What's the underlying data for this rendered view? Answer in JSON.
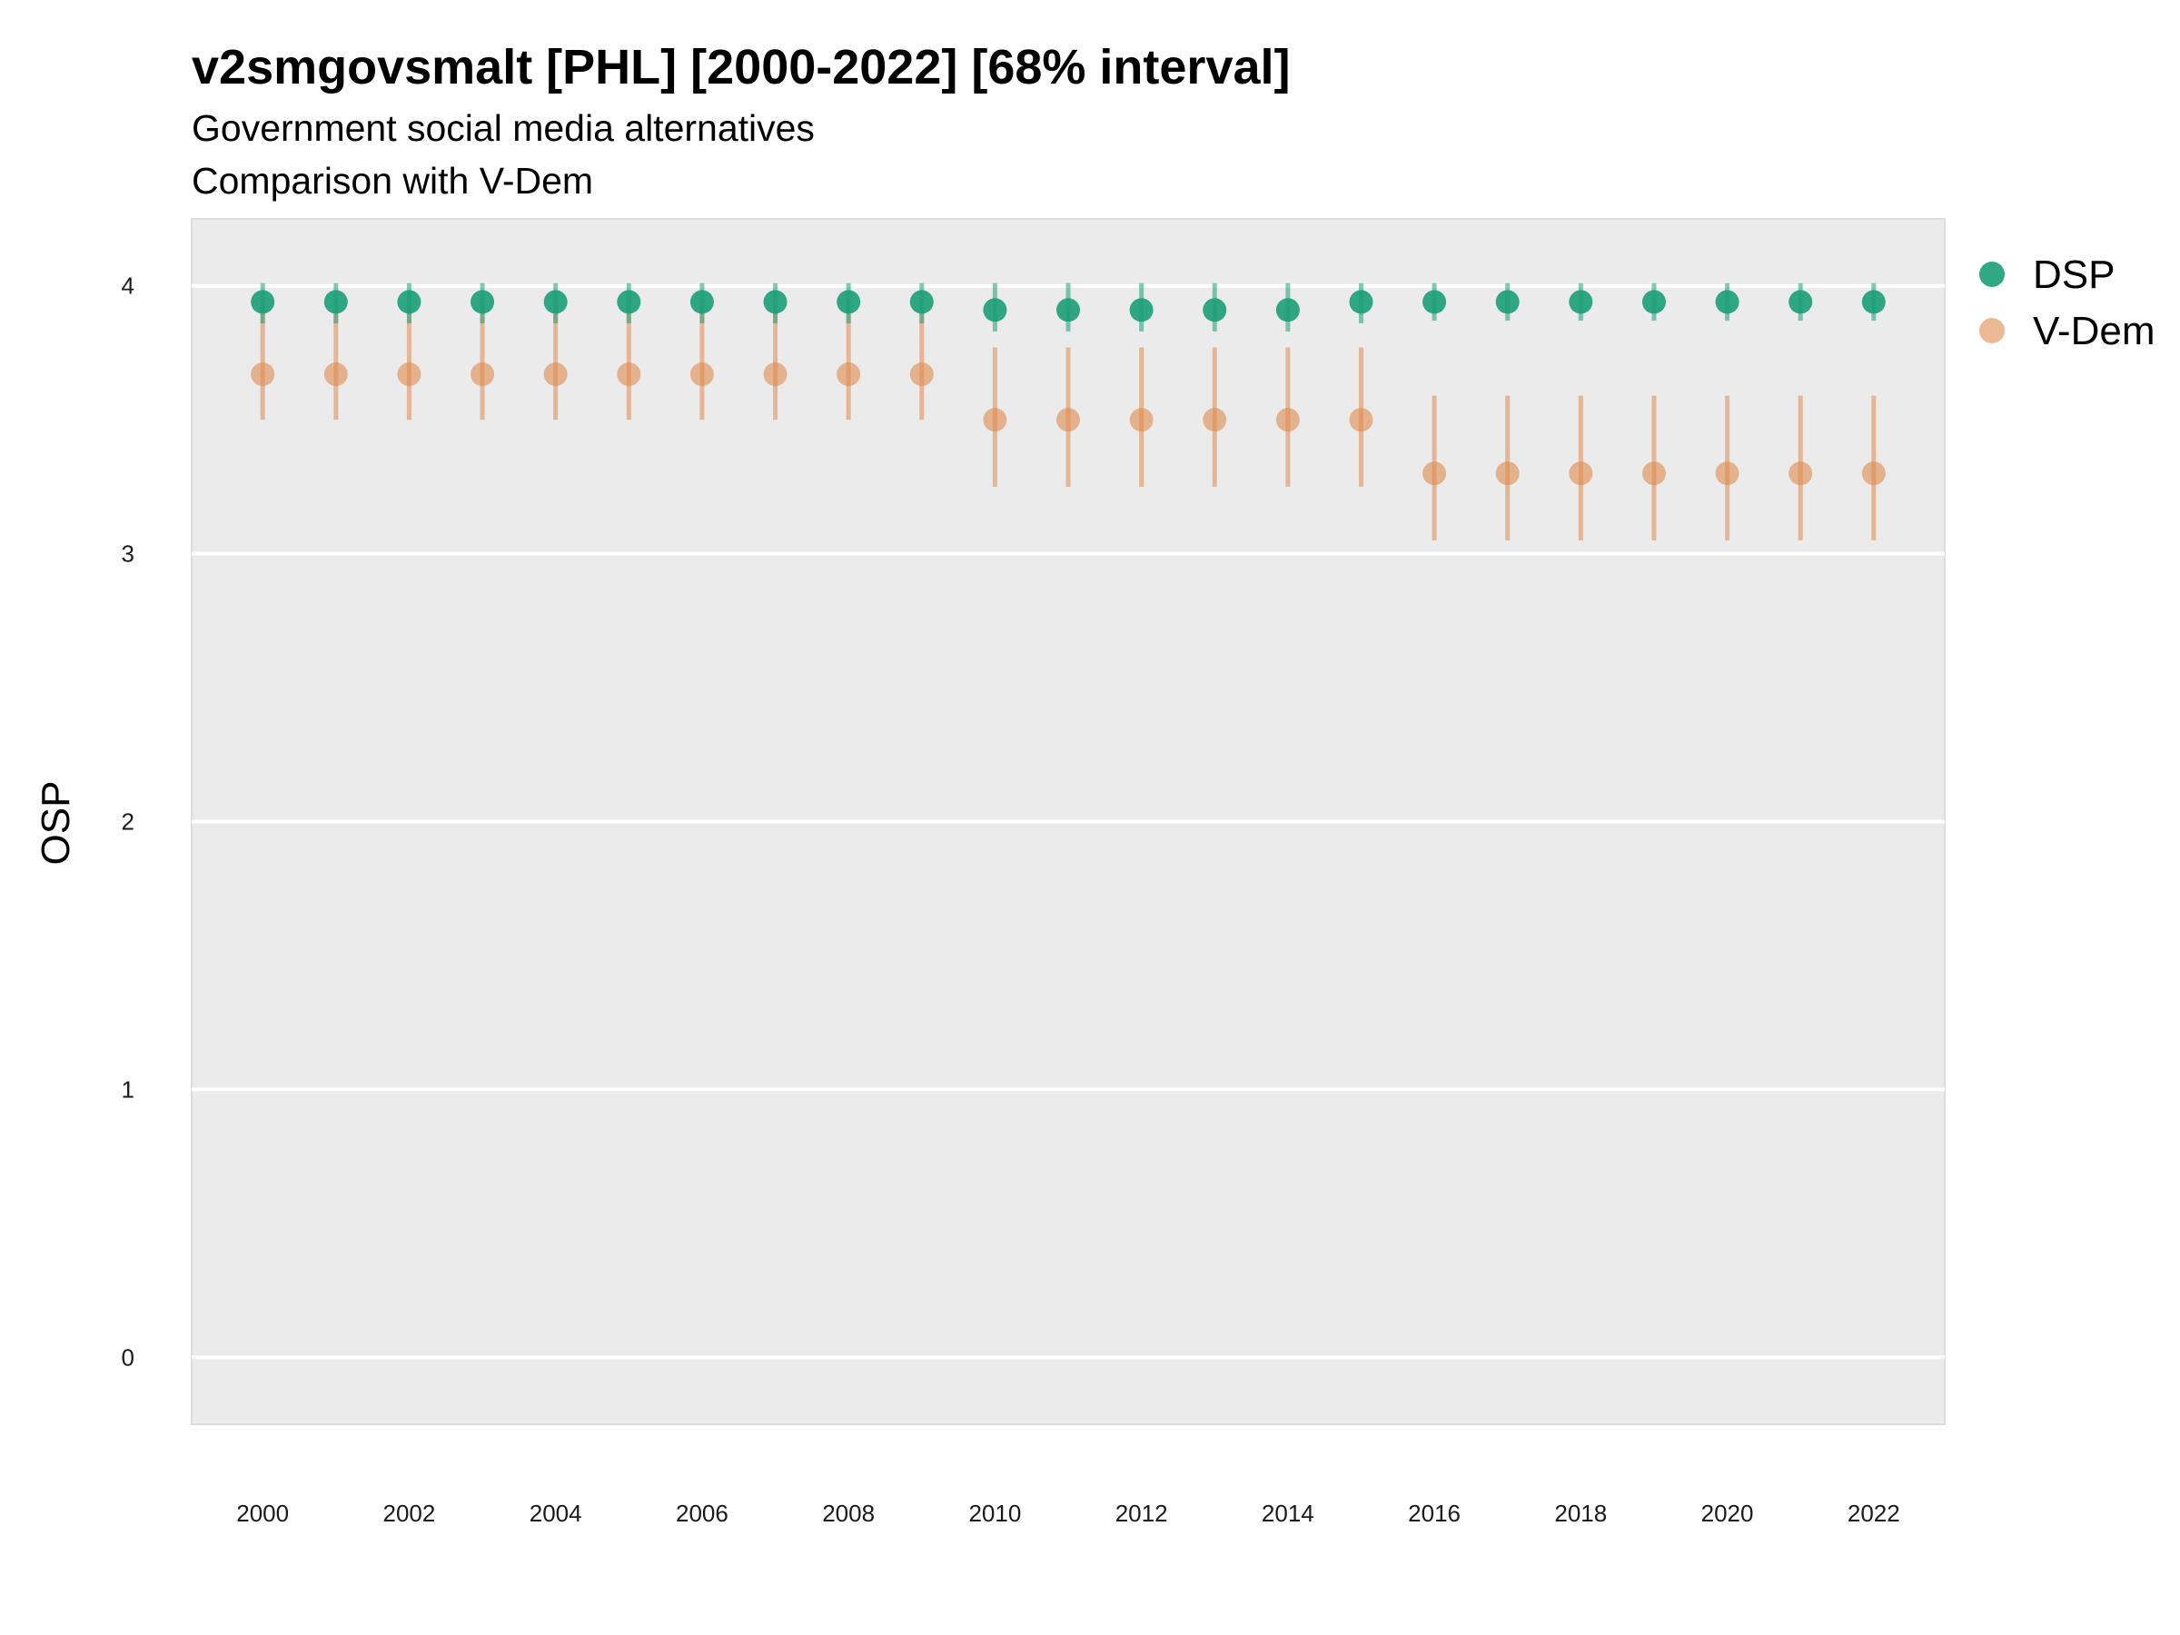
{
  "chart_data": {
    "type": "scatter",
    "title": "v2smgovsmalt [PHL] [2000-2022] [68% interval]",
    "subtitle": "Government social media alternatives",
    "caption": "Comparison with V-Dem",
    "xlabel": "",
    "ylabel": "OSP",
    "ylim": [
      -0.25,
      4.25
    ],
    "y_ticks": [
      0,
      1,
      2,
      3,
      4
    ],
    "x_ticks": [
      2000,
      2002,
      2004,
      2006,
      2008,
      2010,
      2012,
      2014,
      2016,
      2018,
      2020,
      2022
    ],
    "x": [
      2000,
      2001,
      2002,
      2003,
      2004,
      2005,
      2006,
      2007,
      2008,
      2009,
      2010,
      2011,
      2012,
      2013,
      2014,
      2015,
      2016,
      2017,
      2018,
      2019,
      2020,
      2021,
      2022
    ],
    "grid": true,
    "legend_position": "right",
    "series": [
      {
        "name": "DSP",
        "color": "#1b9e77",
        "values": [
          3.94,
          3.94,
          3.94,
          3.94,
          3.94,
          3.94,
          3.94,
          3.94,
          3.94,
          3.94,
          3.91,
          3.91,
          3.91,
          3.91,
          3.91,
          3.94,
          3.94,
          3.94,
          3.94,
          3.94,
          3.94,
          3.94,
          3.94
        ],
        "lower": [
          3.86,
          3.86,
          3.86,
          3.86,
          3.86,
          3.86,
          3.86,
          3.86,
          3.86,
          3.86,
          3.83,
          3.83,
          3.83,
          3.83,
          3.83,
          3.86,
          3.87,
          3.87,
          3.87,
          3.87,
          3.87,
          3.87,
          3.87
        ],
        "upper": [
          4.01,
          4.01,
          4.01,
          4.01,
          4.01,
          4.01,
          4.01,
          4.01,
          4.01,
          4.01,
          4.01,
          4.01,
          4.01,
          4.01,
          4.01,
          4.01,
          4.01,
          4.01,
          4.01,
          4.01,
          4.01,
          4.01,
          4.01
        ]
      },
      {
        "name": "V-Dem",
        "color": "#e08b4f",
        "values": [
          3.67,
          3.67,
          3.67,
          3.67,
          3.67,
          3.67,
          3.67,
          3.67,
          3.67,
          3.67,
          3.5,
          3.5,
          3.5,
          3.5,
          3.5,
          3.5,
          3.3,
          3.3,
          3.3,
          3.3,
          3.3,
          3.3,
          3.3
        ],
        "lower": [
          3.5,
          3.5,
          3.5,
          3.5,
          3.5,
          3.5,
          3.5,
          3.5,
          3.5,
          3.5,
          3.25,
          3.25,
          3.25,
          3.25,
          3.25,
          3.25,
          3.05,
          3.05,
          3.05,
          3.05,
          3.05,
          3.05,
          3.05
        ],
        "upper": [
          3.93,
          3.93,
          3.93,
          3.93,
          3.93,
          3.93,
          3.93,
          3.93,
          3.93,
          3.93,
          3.77,
          3.77,
          3.77,
          3.77,
          3.77,
          3.77,
          3.59,
          3.59,
          3.59,
          3.59,
          3.59,
          3.59,
          3.59
        ]
      }
    ]
  }
}
